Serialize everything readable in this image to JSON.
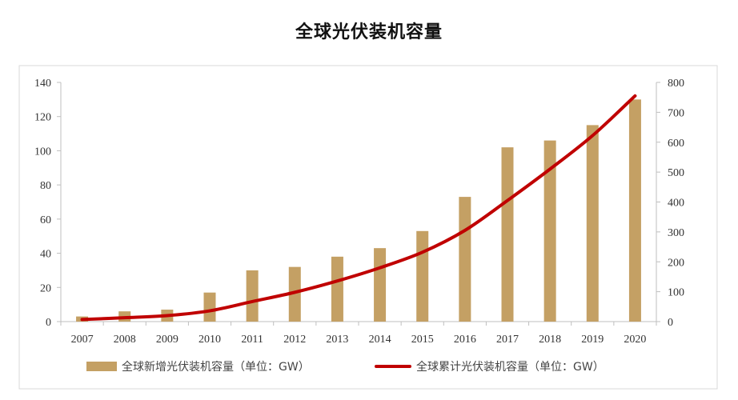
{
  "title": "全球光伏装机容量",
  "colors": {
    "bar": "#C4A064",
    "line": "#C00000",
    "axis": "#bfbfbf",
    "frame": "#d9d9d9"
  },
  "chart_data": {
    "type": "bar",
    "title": "全球光伏装机容量",
    "categories": [
      "2007",
      "2008",
      "2009",
      "2010",
      "2011",
      "2012",
      "2013",
      "2014",
      "2015",
      "2016",
      "2017",
      "2018",
      "2019",
      "2020"
    ],
    "series": [
      {
        "name": "全球新增光伏装机容量（单位：GW）",
        "type": "bar",
        "axis": "left",
        "values": [
          3,
          6,
          7,
          17,
          30,
          32,
          38,
          43,
          53,
          73,
          102,
          106,
          115,
          130
        ]
      },
      {
        "name": "全球累计光伏装机容量（单位：GW）",
        "type": "line",
        "axis": "right",
        "values": [
          7,
          13,
          20,
          36,
          67,
          98,
          136,
          180,
          232,
          305,
          405,
          510,
          622,
          755
        ]
      }
    ],
    "y_left": {
      "min": 0,
      "max": 140,
      "ticks": [
        "0",
        "20",
        "40",
        "60",
        "80",
        "100",
        "120",
        "140"
      ]
    },
    "y_right": {
      "min": 0,
      "max": 800,
      "ticks": [
        "0",
        "100",
        "200",
        "300",
        "400",
        "500",
        "600",
        "700",
        "800"
      ]
    },
    "grid": false,
    "legend": "bottom"
  }
}
